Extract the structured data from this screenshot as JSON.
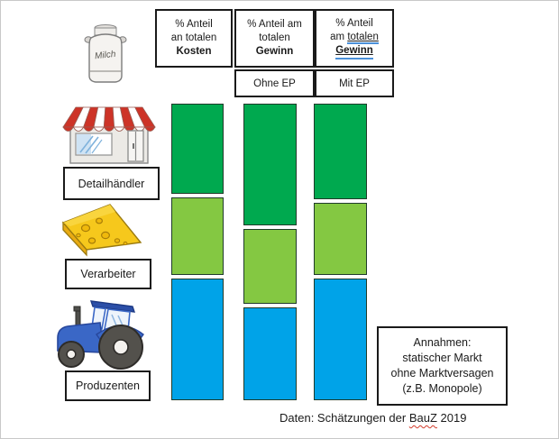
{
  "slide": {
    "milk_can_label": "Milch",
    "source_line": {
      "prefix": "Daten: Schätzungen der ",
      "flagged": "BauZ",
      "suffix": " 2019"
    }
  },
  "headers": {
    "kosten": {
      "line1": "% Anteil",
      "line2": "an totalen",
      "line3": "Kosten"
    },
    "gewinn_ohne": {
      "line1": "% Anteil am",
      "line2": "totalen",
      "line3": "Gewinn"
    },
    "gewinn_mit": {
      "line1": "% Anteil",
      "line2_plain": "am ",
      "line2_underlined": "totalen",
      "line3": "Gewinn"
    },
    "sub_ohne": "Ohne EP",
    "sub_mit": "Mit EP"
  },
  "assumptions": {
    "line1": "Annahmen:",
    "line2": "statischer Markt",
    "line3": "ohne Marktversagen",
    "line4": "(z.B.  Monopole)"
  },
  "chart_data": {
    "type": "bar",
    "subtype": "stacked-100percent-columns",
    "categories": [
      "% Anteil an totalen Kosten",
      "% Anteil am totalen Gewinn (Ohne EP)",
      "% Anteil am totalen Gewinn (Mit EP)"
    ],
    "rows": [
      {
        "key": "detailhaendler",
        "label": "Detailhändler",
        "color": "#00a94f"
      },
      {
        "key": "verarbeiter",
        "label": "Verarbeiter",
        "color": "#84c842"
      },
      {
        "key": "produzenten",
        "label": "Produzenten",
        "color": "#00a3e8"
      }
    ],
    "series": [
      {
        "name": "% Anteil an totalen Kosten",
        "values": [
          31,
          27,
          42
        ]
      },
      {
        "name": "% Anteil am totalen Gewinn (Ohne EP)",
        "values": [
          42,
          26,
          32
        ]
      },
      {
        "name": "% Anteil am totalen Gewinn (Mit EP)",
        "values": [
          33,
          25,
          42
        ]
      }
    ],
    "unit": "%",
    "legend_position": "left-icons",
    "axes_visible": false
  }
}
